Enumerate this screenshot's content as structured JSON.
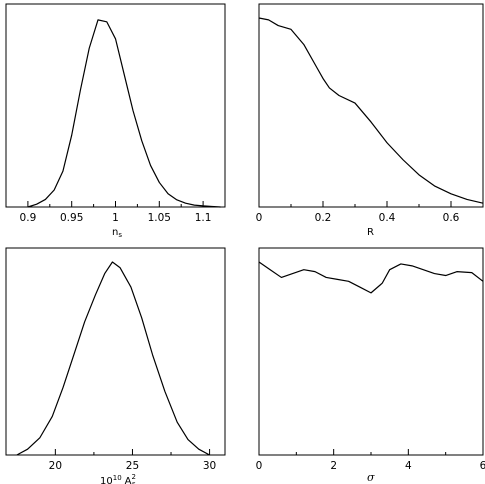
{
  "chart_data": [
    {
      "type": "line",
      "xlabel_main": "n",
      "xlabel_sub": "s",
      "xlim": [
        0.875,
        1.125
      ],
      "ylim": [
        0,
        1.0
      ],
      "xticks": [
        0.9,
        0.95,
        1.0,
        1.05,
        1.1
      ],
      "xtick_labels": [
        "0.9",
        "0.95",
        "1",
        "1.05",
        "1.1"
      ],
      "x": [
        0.9,
        0.91,
        0.92,
        0.93,
        0.94,
        0.95,
        0.96,
        0.97,
        0.98,
        0.99,
        1.0,
        1.01,
        1.02,
        1.03,
        1.04,
        1.05,
        1.06,
        1.07,
        1.08,
        1.09,
        1.1,
        1.11,
        1.12
      ],
      "y": [
        0.0,
        0.015,
        0.04,
        0.09,
        0.19,
        0.38,
        0.62,
        0.84,
        0.99,
        0.98,
        0.89,
        0.7,
        0.51,
        0.35,
        0.22,
        0.13,
        0.07,
        0.038,
        0.02,
        0.01,
        0.006,
        0.003,
        0.0
      ]
    },
    {
      "type": "line",
      "xlabel_main": "R",
      "xlim": [
        0,
        0.7
      ],
      "ylim": [
        0,
        1.0
      ],
      "xticks": [
        0,
        0.2,
        0.4,
        0.6
      ],
      "xtick_labels": [
        "0",
        "0.2",
        "0.4",
        "0.6"
      ],
      "x": [
        0,
        0.03,
        0.06,
        0.1,
        0.14,
        0.18,
        0.2,
        0.22,
        0.25,
        0.3,
        0.35,
        0.4,
        0.45,
        0.5,
        0.55,
        0.6,
        0.65,
        0.7
      ],
      "y": [
        1.0,
        0.99,
        0.96,
        0.94,
        0.86,
        0.74,
        0.68,
        0.63,
        0.59,
        0.55,
        0.45,
        0.34,
        0.25,
        0.17,
        0.11,
        0.07,
        0.04,
        0.02
      ]
    },
    {
      "type": "line",
      "xlabel_main": "10",
      "xlabel_sup": "10",
      "xlabel_sym": "A",
      "xlabel_symsup": "2",
      "xlabel_symsub": "s",
      "xlim": [
        16.8,
        31.0
      ],
      "ylim": [
        0,
        1.0
      ],
      "xticks": [
        20,
        25,
        30
      ],
      "xtick_labels": [
        "20",
        "25",
        "30"
      ],
      "x": [
        17.5,
        18.2,
        19.0,
        19.8,
        20.5,
        21.2,
        21.9,
        22.6,
        23.2,
        23.7,
        24.2,
        24.9,
        25.6,
        26.3,
        27.1,
        27.9,
        28.6,
        29.3,
        30.0
      ],
      "y": [
        0.0,
        0.03,
        0.09,
        0.2,
        0.35,
        0.52,
        0.69,
        0.83,
        0.94,
        1.0,
        0.97,
        0.87,
        0.71,
        0.52,
        0.33,
        0.17,
        0.08,
        0.03,
        0.0
      ]
    },
    {
      "type": "line",
      "xlabel_main": "σ",
      "xlim": [
        0,
        6
      ],
      "ylim": [
        0,
        1.0
      ],
      "xticks": [
        0,
        2,
        4,
        6
      ],
      "xtick_labels": [
        "0",
        "2",
        "4",
        "6"
      ],
      "x": [
        0,
        0.3,
        0.6,
        0.9,
        1.2,
        1.5,
        1.8,
        2.1,
        2.4,
        2.7,
        3.0,
        3.3,
        3.5,
        3.8,
        4.1,
        4.4,
        4.7,
        5.0,
        5.3,
        5.7,
        6.0
      ],
      "y": [
        1.0,
        0.96,
        0.92,
        0.94,
        0.96,
        0.95,
        0.92,
        0.91,
        0.9,
        0.87,
        0.84,
        0.89,
        0.96,
        0.99,
        0.98,
        0.96,
        0.94,
        0.93,
        0.95,
        0.945,
        0.9
      ]
    }
  ]
}
